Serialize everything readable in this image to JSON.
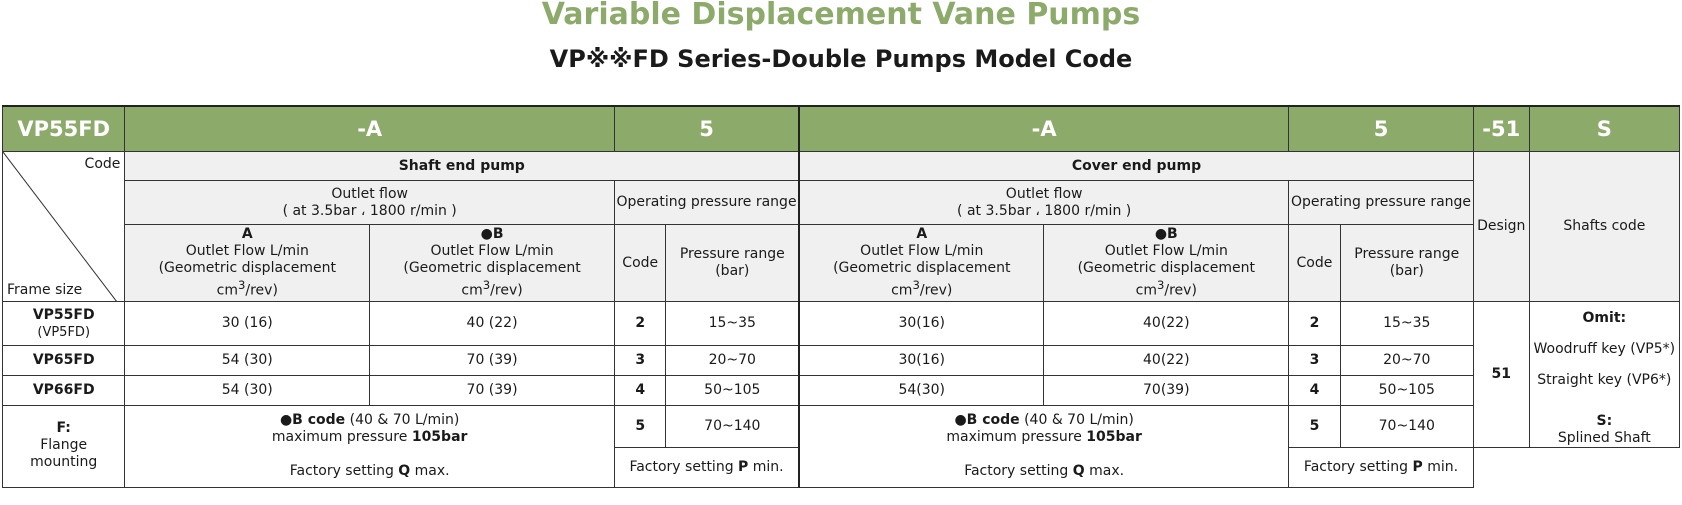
{
  "title": "Variable Displacement Vane Pumps",
  "subtitle": "VP※※FD Series-Double Pumps Model Code",
  "header": [
    "VP55FD",
    "-A",
    "5",
    "-A",
    "5",
    "-51",
    "S"
  ],
  "diag": {
    "code": "Code",
    "frame": "Frame size"
  },
  "shaft_end_pump": "Shaft end pump",
  "cover_end_pump": "Cover end pump",
  "outlet_flow": {
    "line1": "Outlet flow",
    "line2": "( at 3.5bar ، 1800 r/min )"
  },
  "pressure_range_title": "Operating pressure range",
  "design": "Design",
  "shafts_code": "Shafts code",
  "flow_A": {
    "code": "A",
    "l1": "Outlet Flow L/min",
    "l2": "(Geometric displacement",
    "l3": "cm",
    "sup": "3",
    "l4": "/rev)"
  },
  "flow_B": {
    "code": "●B",
    "l1": "Outlet Flow L/min",
    "l2": "(Geometric displacement",
    "l3": "cm",
    "sup": "3",
    "l4": "/rev)"
  },
  "code_label": "Code",
  "pressure_label": {
    "l1": "Pressure range",
    "l2": "(bar)"
  },
  "rows": [
    {
      "frame": "VP55FD",
      "frame_sub": "(VP5FD)",
      "sA": "30 (16)",
      "sB": "40 (22)",
      "code": "2",
      "range": "15~35",
      "cA": "30(16)",
      "cB": "40(22)",
      "code2": "2",
      "range2": "15~35"
    },
    {
      "frame": "VP65FD",
      "sA": "54 (30)",
      "sB": "70 (39)",
      "code": "3",
      "range": "20~70",
      "cA": "30(16)",
      "cB": "40(22)",
      "code2": "3",
      "range2": "20~70"
    },
    {
      "frame": "VP66FD",
      "sA": "54 (30)",
      "sB": "70 (39)",
      "code": "4",
      "range": "50~105",
      "cA": "54(30)",
      "cB": "70(39)",
      "code2": "4",
      "range2": "50~105"
    }
  ],
  "row5": {
    "code": "5",
    "range": "70~140"
  },
  "design_value": "51",
  "flange": {
    "code": "F:",
    "l1": "Flange",
    "l2": "mounting"
  },
  "bcode": {
    "label": "●B code",
    "rest": " (40 & 70 L/min)",
    "l2a": "maximum pressure ",
    "l2b": "105bar",
    "l3a": "Factory setting ",
    "l3b": "Q",
    "l3c": " max."
  },
  "factory_p": {
    "a": "Factory setting ",
    "b": "P",
    "c": " min."
  },
  "shafts": {
    "omit": "Omit:",
    "wood": "Woodruff key (VP5*)",
    "straight": "Straight key (VP6*)",
    "s": "S:",
    "splined": "Splined Shaft"
  }
}
